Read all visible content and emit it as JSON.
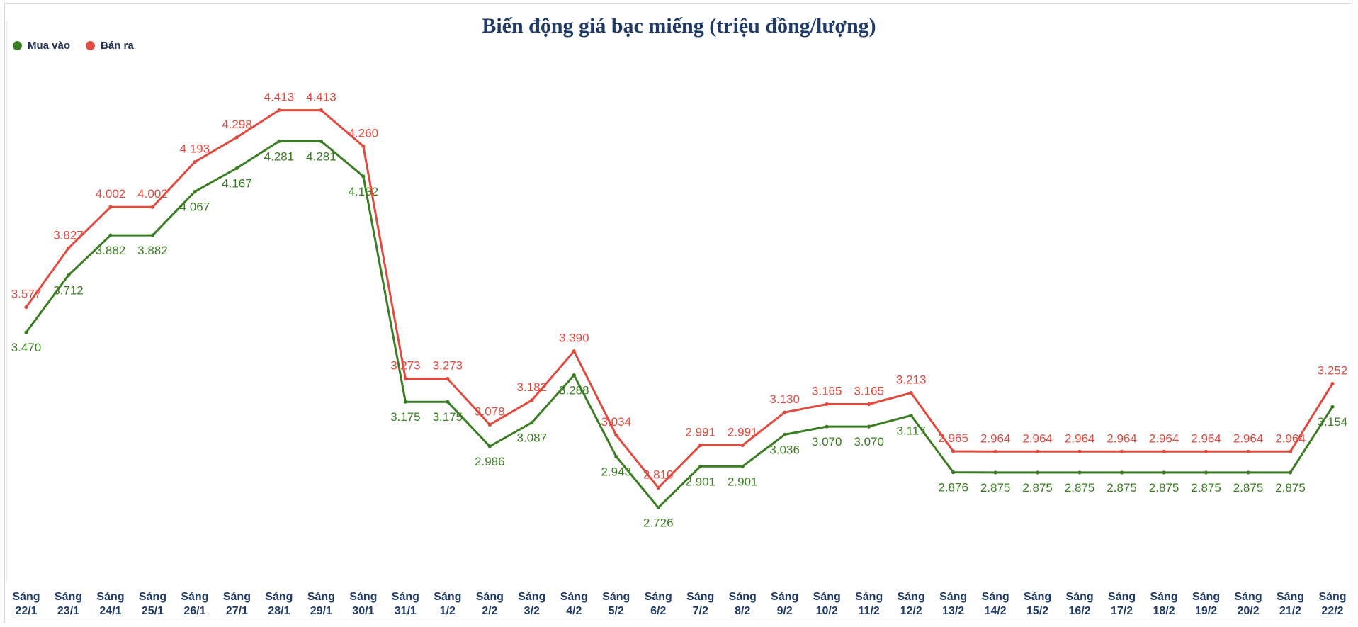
{
  "chart_data": {
    "type": "line",
    "title": "Biến động giá bạc miếng (triệu đồng/lượng)",
    "xlabel": "",
    "ylabel": "",
    "ylim": [
      2.55,
      4.55
    ],
    "grid": false,
    "legend_position": "top-left",
    "categories": [
      [
        "Sáng",
        "22/1"
      ],
      [
        "Sáng",
        "23/1"
      ],
      [
        "Sáng",
        "24/1"
      ],
      [
        "Sáng",
        "25/1"
      ],
      [
        "Sáng",
        "26/1"
      ],
      [
        "Sáng",
        "27/1"
      ],
      [
        "Sáng",
        "28/1"
      ],
      [
        "Sáng",
        "29/1"
      ],
      [
        "Sáng",
        "30/1"
      ],
      [
        "Sáng",
        "31/1"
      ],
      [
        "Sáng",
        "1/2"
      ],
      [
        "Sáng",
        "2/2"
      ],
      [
        "Sáng",
        "3/2"
      ],
      [
        "Sáng",
        "4/2"
      ],
      [
        "Sáng",
        "5/2"
      ],
      [
        "Sáng",
        "6/2"
      ],
      [
        "Sáng",
        "7/2"
      ],
      [
        "Sáng",
        "8/2"
      ],
      [
        "Sáng",
        "9/2"
      ],
      [
        "Sáng",
        "10/2"
      ],
      [
        "Sáng",
        "11/2"
      ],
      [
        "Sáng",
        "12/2"
      ],
      [
        "Sáng",
        "13/2"
      ],
      [
        "Sáng",
        "14/2"
      ],
      [
        "Sáng",
        "15/2"
      ],
      [
        "Sáng",
        "16/2"
      ],
      [
        "Sáng",
        "17/2"
      ],
      [
        "Sáng",
        "18/2"
      ],
      [
        "Sáng",
        "19/2"
      ],
      [
        "Sáng",
        "20/2"
      ],
      [
        "Sáng",
        "21/2"
      ],
      [
        "Sáng",
        "22/2"
      ]
    ],
    "series": [
      {
        "name": "Mua vào",
        "color": "#3a7d22",
        "label_position": "below",
        "values": [
          3.47,
          3.712,
          3.882,
          3.882,
          4.067,
          4.167,
          4.281,
          4.281,
          4.132,
          3.175,
          3.175,
          2.986,
          3.087,
          3.288,
          2.943,
          2.726,
          2.901,
          2.901,
          3.036,
          3.07,
          3.07,
          3.117,
          2.876,
          2.875,
          2.875,
          2.875,
          2.875,
          2.875,
          2.875,
          2.875,
          2.875,
          3.154
        ],
        "labels": [
          "3.470",
          "3.712",
          "3.882",
          "3.882",
          "4.067",
          "4.167",
          "4.281",
          "4.281",
          "4.132",
          "3.175",
          "3.175",
          "2.986",
          "3.087",
          "3.288",
          "2.943",
          "2.726",
          "2.901",
          "2.901",
          "3.036",
          "3.070",
          "3.070",
          "3.117",
          "2.876",
          "2.875",
          "2.875",
          "2.875",
          "2.875",
          "2.875",
          "2.875",
          "2.875",
          "2.875",
          "3.154"
        ]
      },
      {
        "name": "Bán ra",
        "color": "#e04a3f",
        "label_position": "above",
        "values": [
          3.577,
          3.827,
          4.002,
          4.002,
          4.193,
          4.298,
          4.413,
          4.413,
          4.26,
          3.273,
          3.273,
          3.078,
          3.182,
          3.39,
          3.034,
          2.81,
          2.991,
          2.991,
          3.13,
          3.165,
          3.165,
          3.213,
          2.965,
          2.964,
          2.964,
          2.964,
          2.964,
          2.964,
          2.964,
          2.964,
          2.964,
          3.252
        ],
        "labels": [
          "3.577",
          "3.827",
          "4.002",
          "4.002",
          "4.193",
          "4.298",
          "4.413",
          "4.413",
          "4.260",
          "3.273",
          "3.273",
          "3.078",
          "3.182",
          "3.390",
          "3.034",
          "2.810",
          "2.991",
          "2.991",
          "3.130",
          "3.165",
          "3.165",
          "3.213",
          "2.965",
          "2.964",
          "2.964",
          "2.964",
          "2.964",
          "2.964",
          "2.964",
          "2.964",
          "2.964",
          "3.252"
        ]
      }
    ]
  }
}
